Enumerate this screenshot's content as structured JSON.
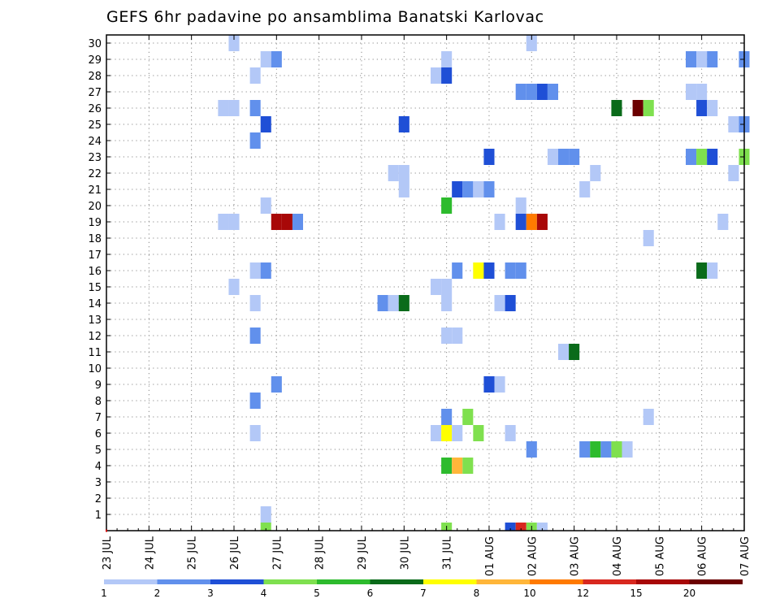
{
  "chart_data": {
    "type": "heatmap",
    "title": "GEFS 6hr padavine po ansamblima Banatski Karlovac",
    "y_tick_labels": [
      "1",
      "2",
      "3",
      "4",
      "5",
      "6",
      "7",
      "8",
      "9",
      "10",
      "11",
      "12",
      "13",
      "14",
      "15",
      "16",
      "17",
      "18",
      "19",
      "20",
      "21",
      "22",
      "23",
      "24",
      "25",
      "26",
      "27",
      "28",
      "29",
      "30"
    ],
    "x_tick_labels": [
      "23 JUL",
      "24 JUL",
      "25 JUL",
      "26 JUL",
      "27 JUL",
      "28 JUL",
      "29 JUL",
      "30 JUL",
      "31 JUL",
      "01 AUG",
      "02 AUG",
      "03 AUG",
      "04 AUG",
      "05 AUG",
      "06 AUG",
      "07 AUG"
    ],
    "ylim": [
      0,
      30
    ],
    "x_step": "6 hours",
    "grid": true,
    "colorbar": {
      "labels": [
        "1",
        "2",
        "3",
        "4",
        "5",
        "6",
        "7",
        "8",
        "10",
        "12",
        "15",
        "20"
      ],
      "bounds": [
        1,
        2,
        3,
        4,
        5,
        6,
        7,
        8,
        10,
        12,
        15,
        20,
        30
      ],
      "colors": [
        "#b3c8f7",
        "#6190ec",
        "#1f4fd6",
        "#7fe04f",
        "#2dbb2d",
        "#0a6b1a",
        "#ffff00",
        "#ffb63a",
        "#ff7a00",
        "#d8281f",
        "#a80808",
        "#6b0000"
      ]
    },
    "cells": [
      {
        "member": 30,
        "time": "25 JUL 24:00",
        "category": 1
      },
      {
        "member": 30,
        "time": "01 AUG 24:00",
        "category": 1
      },
      {
        "member": 29,
        "time": "26 JUL 18:00",
        "category": 1
      },
      {
        "member": 29,
        "time": "27 JUL 00:00",
        "category": 2
      },
      {
        "member": 29,
        "time": "30 JUL 24:00",
        "category": 1
      },
      {
        "member": 29,
        "time": "05 AUG 18:00",
        "category": 2
      },
      {
        "member": 29,
        "time": "06 AUG 00:00",
        "category": 1
      },
      {
        "member": 29,
        "time": "06 AUG 06:00",
        "category": 2
      },
      {
        "member": 29,
        "time": "07 AUG 00:00",
        "category": 2
      },
      {
        "member": 28,
        "time": "26 JUL 12:00",
        "category": 1
      },
      {
        "member": 28,
        "time": "30 JUL 18:00",
        "category": 1
      },
      {
        "member": 28,
        "time": "30 JUL 24:00",
        "category": 3
      },
      {
        "member": 27,
        "time": "01 AUG 18:00",
        "category": 2
      },
      {
        "member": 27,
        "time": "02 AUG 00:00",
        "category": 2
      },
      {
        "member": 27,
        "time": "02 AUG 06:00",
        "category": 3
      },
      {
        "member": 27,
        "time": "02 AUG 12:00",
        "category": 2
      },
      {
        "member": 27,
        "time": "05 AUG 18:00",
        "category": 1
      },
      {
        "member": 27,
        "time": "06 AUG 00:00",
        "category": 1
      },
      {
        "member": 26,
        "time": "25 JUL 18:00",
        "category": 1
      },
      {
        "member": 26,
        "time": "26 JUL 00:00",
        "category": 1
      },
      {
        "member": 26,
        "time": "26 JUL 12:00",
        "category": 2
      },
      {
        "member": 26,
        "time": "04 AUG 00:00",
        "category": 6
      },
      {
        "member": 26,
        "time": "04 AUG 12:00",
        "category": 12
      },
      {
        "member": 26,
        "time": "04 AUG 18:00",
        "category": 4
      },
      {
        "member": 26,
        "time": "06 AUG 00:00",
        "category": 3
      },
      {
        "member": 26,
        "time": "06 AUG 06:00",
        "category": 1
      },
      {
        "member": 25,
        "time": "26 JUL 18:00",
        "category": 3
      },
      {
        "member": 25,
        "time": "29 JUL 24:00",
        "category": 3
      },
      {
        "member": 25,
        "time": "06 AUG 18:00",
        "category": 1
      },
      {
        "member": 25,
        "time": "07 AUG 00:00",
        "category": 2
      },
      {
        "member": 24,
        "time": "26 JUL 12:00",
        "category": 2
      },
      {
        "member": 23,
        "time": "01 AUG 00:00",
        "category": 3
      },
      {
        "member": 23,
        "time": "02 AUG 12:00",
        "category": 1
      },
      {
        "member": 23,
        "time": "02 AUG 18:00",
        "category": 2
      },
      {
        "member": 23,
        "time": "03 AUG 00:00",
        "category": 2
      },
      {
        "member": 23,
        "time": "05 AUG 18:00",
        "category": 2
      },
      {
        "member": 23,
        "time": "06 AUG 00:00",
        "category": 4
      },
      {
        "member": 23,
        "time": "06 AUG 06:00",
        "category": 3
      },
      {
        "member": 23,
        "time": "07 AUG 00:00",
        "category": 4
      },
      {
        "member": 22,
        "time": "29 JUL 18:00",
        "category": 1
      },
      {
        "member": 22,
        "time": "30 JUL 00:00",
        "category": 1
      },
      {
        "member": 22,
        "time": "03 AUG 12:00",
        "category": 1
      },
      {
        "member": 22,
        "time": "06 AUG 18:00",
        "category": 1
      },
      {
        "member": 21,
        "time": "29 JUL 24:00",
        "category": 1
      },
      {
        "member": 21,
        "time": "31 JUL 06:00",
        "category": 3
      },
      {
        "member": 21,
        "time": "31 JUL 12:00",
        "category": 2
      },
      {
        "member": 21,
        "time": "31 JUL 18:00",
        "category": 1
      },
      {
        "member": 21,
        "time": "31 JUL 24:00",
        "category": 2
      },
      {
        "member": 21,
        "time": "03 AUG 06:00",
        "category": 1
      },
      {
        "member": 20,
        "time": "26 JUL 18:00",
        "category": 1
      },
      {
        "member": 20,
        "time": "30 JUL 24:00",
        "category": 5
      },
      {
        "member": 20,
        "time": "01 AUG 18:00",
        "category": 1
      },
      {
        "member": 19,
        "time": "25 JUL 18:00",
        "category": 1
      },
      {
        "member": 19,
        "time": "26 JUL 00:00",
        "category": 1
      },
      {
        "member": 19,
        "time": "27 JUL 00:00",
        "category": 11
      },
      {
        "member": 19,
        "time": "27 JUL 06:00",
        "category": 11
      },
      {
        "member": 19,
        "time": "27 JUL 12:00",
        "category": 2
      },
      {
        "member": 19,
        "time": "01 AUG 06:00",
        "category": 1
      },
      {
        "member": 19,
        "time": "01 AUG 18:00",
        "category": 3
      },
      {
        "member": 19,
        "time": "02 AUG 00:00",
        "category": 9
      },
      {
        "member": 19,
        "time": "02 AUG 06:00",
        "category": 11
      },
      {
        "member": 19,
        "time": "06 AUG 12:00",
        "category": 1
      },
      {
        "member": 18,
        "time": "04 AUG 18:00",
        "category": 1
      },
      {
        "member": 16,
        "time": "31 JUL 18:00",
        "category": 1
      },
      {
        "member": 16,
        "time": "26 JUL 12:00",
        "category": 1
      },
      {
        "member": 16,
        "time": "26 JUL 18:00",
        "category": 2
      },
      {
        "member": 16,
        "time": "31 JUL 06:00",
        "category": 2
      },
      {
        "member": 16,
        "time": "31 JUL 18:00",
        "category": 7
      },
      {
        "member": 16,
        "time": "31 JUL 24:00",
        "category": 3
      },
      {
        "member": 16,
        "time": "01 AUG 12:00",
        "category": 2
      },
      {
        "member": 16,
        "time": "01 AUG 18:00",
        "category": 2
      },
      {
        "member": 16,
        "time": "06 AUG 00:00",
        "category": 6
      },
      {
        "member": 16,
        "time": "06 AUG 06:00",
        "category": 1
      },
      {
        "member": 15,
        "time": "25 JUL 24:00",
        "category": 1
      },
      {
        "member": 15,
        "time": "30 JUL 18:00",
        "category": 1
      },
      {
        "member": 15,
        "time": "30 JUL 24:00",
        "category": 1
      },
      {
        "member": 14,
        "time": "26 JUL 12:00",
        "category": 1
      },
      {
        "member": 14,
        "time": "29 JUL 12:00",
        "category": 2
      },
      {
        "member": 14,
        "time": "29 JUL 18:00",
        "category": 1
      },
      {
        "member": 14,
        "time": "29 JUL 24:00",
        "category": 6
      },
      {
        "member": 14,
        "time": "30 JUL 24:00",
        "category": 1
      },
      {
        "member": 14,
        "time": "01 AUG 06:00",
        "category": 1
      },
      {
        "member": 14,
        "time": "01 AUG 12:00",
        "category": 3
      },
      {
        "member": 12,
        "time": "26 JUL 12:00",
        "category": 2
      },
      {
        "member": 12,
        "time": "30 JUL 24:00",
        "category": 1
      },
      {
        "member": 12,
        "time": "31 JUL 06:00",
        "category": 1
      },
      {
        "member": 11,
        "time": "02 AUG 18:00",
        "category": 1
      },
      {
        "member": 11,
        "time": "02 AUG 24:00",
        "category": 6
      },
      {
        "member": 9,
        "time": "27 JUL 00:00",
        "category": 2
      },
      {
        "member": 9,
        "time": "01 AUG 00:00",
        "category": 3
      },
      {
        "member": 9,
        "time": "01 AUG 06:00",
        "category": 1
      },
      {
        "member": 8,
        "time": "26 JUL 12:00",
        "category": 2
      },
      {
        "member": 7,
        "time": "30 JUL 24:00",
        "category": 2
      },
      {
        "member": 7,
        "time": "31 JUL 12:00",
        "category": 4
      },
      {
        "member": 7,
        "time": "04 AUG 18:00",
        "category": 1
      },
      {
        "member": 6,
        "time": "26 JUL 12:00",
        "category": 1
      },
      {
        "member": 6,
        "time": "30 JUL 18:00",
        "category": 1
      },
      {
        "member": 6,
        "time": "30 JUL 24:00",
        "category": 7
      },
      {
        "member": 6,
        "time": "31 JUL 06:00",
        "category": 1
      },
      {
        "member": 6,
        "time": "31 JUL 18:00",
        "category": 4
      },
      {
        "member": 6,
        "time": "01 AUG 12:00",
        "category": 1
      },
      {
        "member": 5,
        "time": "02 AUG 00:00",
        "category": 2
      },
      {
        "member": 5,
        "time": "03 AUG 06:00",
        "category": 2
      },
      {
        "member": 5,
        "time": "03 AUG 12:00",
        "category": 5
      },
      {
        "member": 5,
        "time": "03 AUG 18:00",
        "category": 2
      },
      {
        "member": 5,
        "time": "04 AUG 00:00",
        "category": 4
      },
      {
        "member": 5,
        "time": "04 AUG 06:00",
        "category": 1
      },
      {
        "member": 4,
        "time": "30 JUL 24:00",
        "category": 5
      },
      {
        "member": 4,
        "time": "31 JUL 06:00",
        "category": 8
      },
      {
        "member": 4,
        "time": "31 JUL 12:00",
        "category": 4
      },
      {
        "member": 1,
        "time": "26 JUL 18:00",
        "category": 1
      },
      {
        "member": 0,
        "time": "26 JUL 18:00",
        "category": 4
      },
      {
        "member": 0,
        "time": "30 JUL 24:00",
        "category": 4
      },
      {
        "member": 0,
        "time": "01 AUG 12:00",
        "category": 3
      },
      {
        "member": 0,
        "time": "01 AUG 18:00",
        "category": 10
      },
      {
        "member": 0,
        "time": "02 AUG 00:00",
        "category": 4
      },
      {
        "member": 0,
        "time": "02 AUG 06:00",
        "category": 1
      }
    ]
  }
}
